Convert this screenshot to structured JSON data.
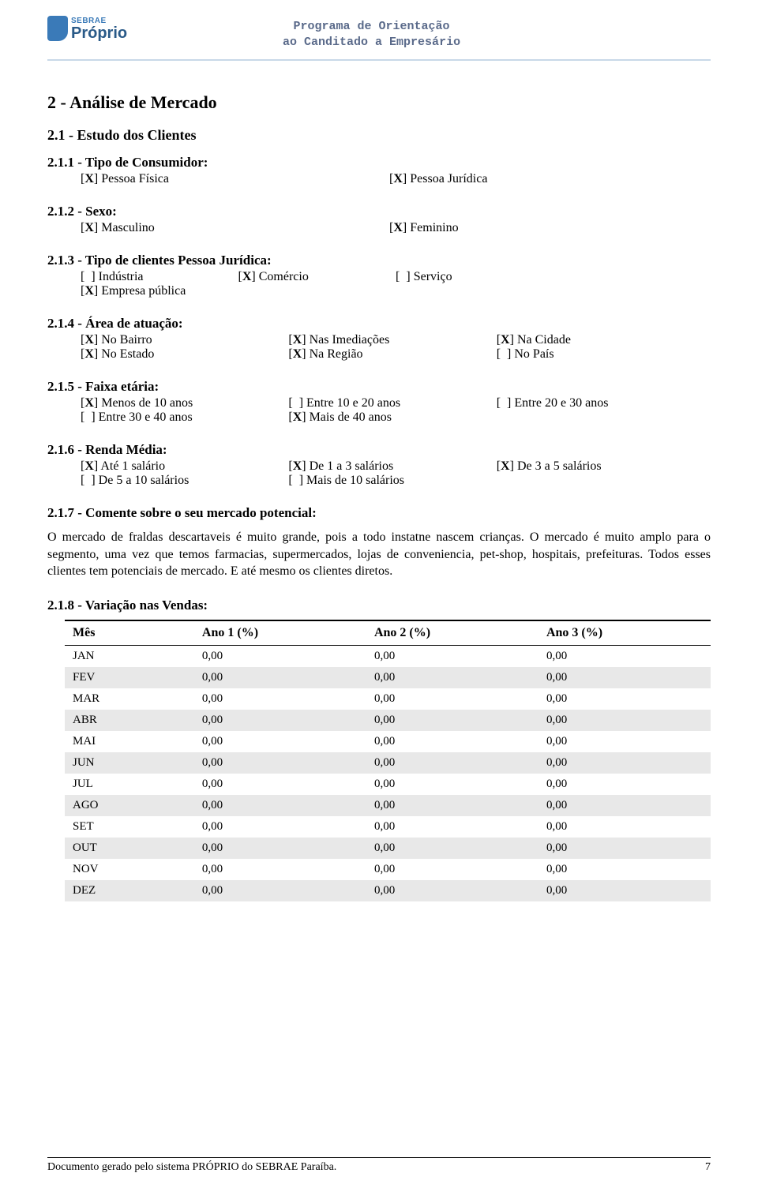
{
  "header": {
    "logo_small": "SEBRAE",
    "logo_big": "Próprio",
    "title_line1": "Programa de Orientação",
    "title_line2": "ao Canditado a Empresário"
  },
  "s2": {
    "title": "2 - Análise de Mercado",
    "s21": {
      "title": "2.1 - Estudo dos Clientes",
      "q211": {
        "label": "2.1.1 - Tipo de Consumidor:",
        "opts": [
          {
            "mark": "X",
            "text": "Pessoa Física"
          },
          {
            "mark": "X",
            "text": "Pessoa Jurídica"
          }
        ]
      },
      "q212": {
        "label": "2.1.2 - Sexo:",
        "opts": [
          {
            "mark": "X",
            "text": "Masculino"
          },
          {
            "mark": "X",
            "text": "Feminino"
          }
        ]
      },
      "q213": {
        "label": "2.1.3 - Tipo de clientes Pessoa Jurídica:",
        "opts": [
          {
            "mark": " ",
            "text": "Indústria"
          },
          {
            "mark": "X",
            "text": "Comércio"
          },
          {
            "mark": " ",
            "text": "Serviço"
          },
          {
            "mark": "X",
            "text": "Empresa pública"
          }
        ]
      },
      "q214": {
        "label": "2.1.4 - Área de atuação:",
        "opts": [
          {
            "mark": "X",
            "text": "No Bairro"
          },
          {
            "mark": "X",
            "text": "Nas Imediações"
          },
          {
            "mark": "X",
            "text": "Na Cidade"
          },
          {
            "mark": "X",
            "text": "No Estado"
          },
          {
            "mark": "X",
            "text": "Na Região"
          },
          {
            "mark": " ",
            "text": "No País"
          }
        ]
      },
      "q215": {
        "label": "2.1.5 - Faixa etária:",
        "opts": [
          {
            "mark": "X",
            "text": "Menos de 10 anos"
          },
          {
            "mark": " ",
            "text": "Entre 10 e 20 anos"
          },
          {
            "mark": " ",
            "text": "Entre 20 e 30 anos"
          },
          {
            "mark": " ",
            "text": "Entre 30 e 40 anos"
          },
          {
            "mark": "X",
            "text": "Mais de 40 anos"
          }
        ]
      },
      "q216": {
        "label": "2.1.6 - Renda Média:",
        "opts": [
          {
            "mark": "X",
            "text": "Até 1 salário"
          },
          {
            "mark": "X",
            "text": "De 1 a 3 salários"
          },
          {
            "mark": "X",
            "text": "De 3 a 5 salários"
          },
          {
            "mark": " ",
            "text": "De 5 a 10 salários"
          },
          {
            "mark": " ",
            "text": "Mais de 10 salários"
          }
        ]
      },
      "q217": {
        "label": "2.1.7 - Comente sobre o seu mercado potencial:",
        "text": "O mercado de fraldas descartaveis é muito grande, pois a todo instatne nascem crianças. O mercado é muito amplo para o segmento, uma vez que temos farmacias, supermercados, lojas de conveniencia, pet-shop, hospitais, prefeituras. Todos esses clientes tem potenciais de mercado. E até mesmo os clientes diretos."
      },
      "q218": {
        "label": "2.1.8 - Variação nas Vendas:",
        "columns": [
          "Mês",
          "Ano 1 (%)",
          "Ano 2 (%)",
          "Ano 3 (%)"
        ],
        "rows": [
          {
            "m": "JAN",
            "v": [
              "0,00",
              "0,00",
              "0,00"
            ],
            "shade": false
          },
          {
            "m": "FEV",
            "v": [
              "0,00",
              "0,00",
              "0,00"
            ],
            "shade": true
          },
          {
            "m": "MAR",
            "v": [
              "0,00",
              "0,00",
              "0,00"
            ],
            "shade": false
          },
          {
            "m": "ABR",
            "v": [
              "0,00",
              "0,00",
              "0,00"
            ],
            "shade": true
          },
          {
            "m": "MAI",
            "v": [
              "0,00",
              "0,00",
              "0,00"
            ],
            "shade": false
          },
          {
            "m": "JUN",
            "v": [
              "0,00",
              "0,00",
              "0,00"
            ],
            "shade": true
          },
          {
            "m": "JUL",
            "v": [
              "0,00",
              "0,00",
              "0,00"
            ],
            "shade": false
          },
          {
            "m": "AGO",
            "v": [
              "0,00",
              "0,00",
              "0,00"
            ],
            "shade": true
          },
          {
            "m": "SET",
            "v": [
              "0,00",
              "0,00",
              "0,00"
            ],
            "shade": false
          },
          {
            "m": "OUT",
            "v": [
              "0,00",
              "0,00",
              "0,00"
            ],
            "shade": true
          },
          {
            "m": "NOV",
            "v": [
              "0,00",
              "0,00",
              "0,00"
            ],
            "shade": false
          },
          {
            "m": "DEZ",
            "v": [
              "0,00",
              "0,00",
              "0,00"
            ],
            "shade": true
          }
        ]
      }
    }
  },
  "footer": {
    "text": "Documento gerado pelo sistema PRÓPRIO do SEBRAE Paraíba.",
    "page": "7"
  },
  "style": {
    "accent": "#3a7ab8",
    "header_rule": "#c8d8e8",
    "shade_bg": "#e8e8e8",
    "body_font": "Times New Roman",
    "header_font": "Courier New"
  }
}
